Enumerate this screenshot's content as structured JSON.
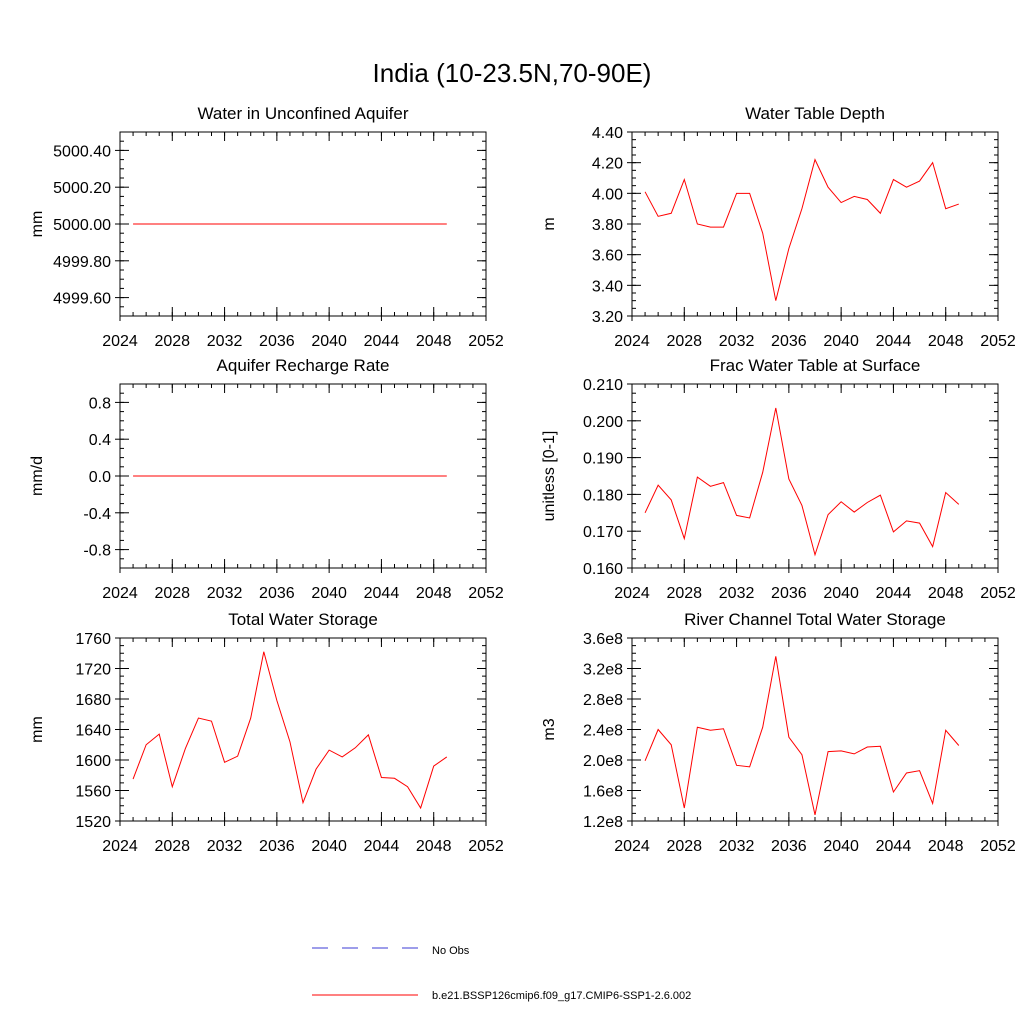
{
  "figure_title": "India (10-23.5N,70-90E)",
  "legend": {
    "obs_label": "No Obs",
    "obs_color": "#3b3bd6",
    "model_label": "b.e21.BSSP126cmip6.f09_g17.CMIP6-SSP1-2.6.002",
    "model_color": "#ff0000"
  },
  "chart_data": [
    {
      "type": "line",
      "title": "Water in Unconfined Aquifer",
      "ylabel": "mm",
      "xlim": [
        2024,
        2052
      ],
      "ylim": [
        4999.5,
        5000.5
      ],
      "xticks": [
        2024,
        2028,
        2032,
        2036,
        2040,
        2044,
        2048,
        2052
      ],
      "yticks": [
        4999.6,
        4999.8,
        5000.0,
        5000.2,
        5000.4
      ],
      "ytick_labels": [
        "4999.60",
        "4999.80",
        "5000.00",
        "5000.20",
        "5000.40"
      ],
      "series": [
        {
          "x": [
            2025,
            2026,
            2027,
            2028,
            2029,
            2030,
            2031,
            2032,
            2033,
            2034,
            2035,
            2036,
            2037,
            2038,
            2039,
            2040,
            2041,
            2042,
            2043,
            2044,
            2045,
            2046,
            2047,
            2048,
            2049
          ],
          "values": [
            5000,
            5000,
            5000,
            5000,
            5000,
            5000,
            5000,
            5000,
            5000,
            5000,
            5000,
            5000,
            5000,
            5000,
            5000,
            5000,
            5000,
            5000,
            5000,
            5000,
            5000,
            5000,
            5000,
            5000,
            5000
          ]
        }
      ]
    },
    {
      "type": "line",
      "title": "Water Table Depth",
      "ylabel": "m",
      "xlim": [
        2024,
        2052
      ],
      "ylim": [
        3.2,
        4.4
      ],
      "xticks": [
        2024,
        2028,
        2032,
        2036,
        2040,
        2044,
        2048,
        2052
      ],
      "yticks": [
        3.2,
        3.4,
        3.6,
        3.8,
        4.0,
        4.2,
        4.4
      ],
      "ytick_labels": [
        "3.20",
        "3.40",
        "3.60",
        "3.80",
        "4.00",
        "4.20",
        "4.40"
      ],
      "series": [
        {
          "x": [
            2025,
            2026,
            2027,
            2028,
            2029,
            2030,
            2031,
            2032,
            2033,
            2034,
            2035,
            2036,
            2037,
            2038,
            2039,
            2040,
            2041,
            2042,
            2043,
            2044,
            2045,
            2046,
            2047,
            2048,
            2049
          ],
          "values": [
            4.01,
            3.85,
            3.87,
            4.09,
            3.8,
            3.78,
            3.78,
            4.0,
            4.0,
            3.74,
            3.3,
            3.64,
            3.9,
            4.22,
            4.04,
            3.94,
            3.98,
            3.96,
            3.87,
            4.09,
            4.04,
            4.08,
            4.2,
            3.9,
            3.93
          ]
        }
      ]
    },
    {
      "type": "line",
      "title": "Aquifer Recharge Rate",
      "ylabel": "mm/d",
      "xlim": [
        2024,
        2052
      ],
      "ylim": [
        -1.0,
        1.0
      ],
      "xticks": [
        2024,
        2028,
        2032,
        2036,
        2040,
        2044,
        2048,
        2052
      ],
      "yticks": [
        -0.8,
        -0.4,
        0.0,
        0.4,
        0.8
      ],
      "ytick_labels": [
        "-0.8",
        "-0.4",
        "0.0",
        "0.4",
        "0.8"
      ],
      "series": [
        {
          "x": [
            2025,
            2026,
            2027,
            2028,
            2029,
            2030,
            2031,
            2032,
            2033,
            2034,
            2035,
            2036,
            2037,
            2038,
            2039,
            2040,
            2041,
            2042,
            2043,
            2044,
            2045,
            2046,
            2047,
            2048,
            2049
          ],
          "values": [
            0,
            0,
            0,
            0,
            0,
            0,
            0,
            0,
            0,
            0,
            0,
            0,
            0,
            0,
            0,
            0,
            0,
            0,
            0,
            0,
            0,
            0,
            0,
            0,
            0
          ]
        }
      ]
    },
    {
      "type": "line",
      "title": "Frac Water Table at Surface",
      "ylabel": "unitless [0-1]",
      "xlim": [
        2024,
        2052
      ],
      "ylim": [
        0.16,
        0.21
      ],
      "xticks": [
        2024,
        2028,
        2032,
        2036,
        2040,
        2044,
        2048,
        2052
      ],
      "yticks": [
        0.16,
        0.17,
        0.18,
        0.19,
        0.2,
        0.21
      ],
      "ytick_labels": [
        "0.160",
        "0.170",
        "0.180",
        "0.190",
        "0.200",
        "0.210"
      ],
      "series": [
        {
          "x": [
            2025,
            2026,
            2027,
            2028,
            2029,
            2030,
            2031,
            2032,
            2033,
            2034,
            2035,
            2036,
            2037,
            2038,
            2039,
            2040,
            2041,
            2042,
            2043,
            2044,
            2045,
            2046,
            2047,
            2048,
            2049
          ],
          "values": [
            0.175,
            0.1825,
            0.1785,
            0.168,
            0.1847,
            0.1822,
            0.1832,
            0.1743,
            0.1736,
            0.186,
            0.2035,
            0.1842,
            0.177,
            0.1636,
            0.1745,
            0.178,
            0.1752,
            0.1778,
            0.1798,
            0.1698,
            0.1728,
            0.1722,
            0.1658,
            0.1805,
            0.1773
          ]
        }
      ]
    },
    {
      "type": "line",
      "title": "Total Water Storage",
      "ylabel": "mm",
      "xlim": [
        2024,
        2052
      ],
      "ylim": [
        1520,
        1760
      ],
      "xticks": [
        2024,
        2028,
        2032,
        2036,
        2040,
        2044,
        2048,
        2052
      ],
      "yticks": [
        1520,
        1560,
        1600,
        1640,
        1680,
        1720,
        1760
      ],
      "ytick_labels": [
        "1520",
        "1560",
        "1600",
        "1640",
        "1680",
        "1720",
        "1760"
      ],
      "series": [
        {
          "x": [
            2025,
            2026,
            2027,
            2028,
            2029,
            2030,
            2031,
            2032,
            2033,
            2034,
            2035,
            2036,
            2037,
            2038,
            2039,
            2040,
            2041,
            2042,
            2043,
            2044,
            2045,
            2046,
            2047,
            2048,
            2049
          ],
          "values": [
            1575,
            1620,
            1634,
            1565,
            1615,
            1655,
            1651,
            1597,
            1605,
            1655,
            1742,
            1678,
            1624,
            1544,
            1588,
            1613,
            1604,
            1616,
            1633,
            1577,
            1576,
            1565,
            1537,
            1592,
            1604
          ]
        }
      ]
    },
    {
      "type": "line",
      "title": "River Channel Total Water Storage",
      "ylabel": "m3",
      "xlim": [
        2024,
        2052
      ],
      "ylim": [
        120000000,
        360000000
      ],
      "xticks": [
        2024,
        2028,
        2032,
        2036,
        2040,
        2044,
        2048,
        2052
      ],
      "yticks": [
        120000000,
        160000000,
        200000000,
        240000000,
        280000000,
        320000000,
        360000000
      ],
      "ytick_labels": [
        "1.2e8",
        "1.6e8",
        "2.0e8",
        "2.4e8",
        "2.8e8",
        "3.2e8",
        "3.6e8"
      ],
      "series": [
        {
          "x": [
            2025,
            2026,
            2027,
            2028,
            2029,
            2030,
            2031,
            2032,
            2033,
            2034,
            2035,
            2036,
            2037,
            2038,
            2039,
            2040,
            2041,
            2042,
            2043,
            2044,
            2045,
            2046,
            2047,
            2048,
            2049
          ],
          "values": [
            199000000,
            240000000,
            220000000,
            137000000,
            243000000,
            239000000,
            241000000,
            193000000,
            191000000,
            243000000,
            336000000,
            230000000,
            207000000,
            128000000,
            211000000,
            212000000,
            208000000,
            217000000,
            218000000,
            158000000,
            183000000,
            186000000,
            143000000,
            239000000,
            219000000
          ]
        }
      ]
    }
  ]
}
